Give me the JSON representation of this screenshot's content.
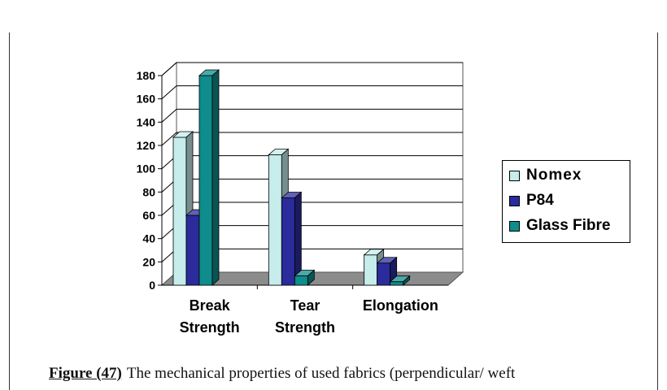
{
  "chart_data": {
    "type": "bar",
    "categories": [
      [
        "Break",
        "Strength"
      ],
      [
        "Tear",
        "Strength"
      ],
      [
        "Elongation"
      ]
    ],
    "series": [
      {
        "name": "Nomex",
        "values": [
          127,
          112,
          26
        ],
        "color": "#c6ecec"
      },
      {
        "name": "P84",
        "values": [
          60,
          75,
          19
        ],
        "color": "#2b2b9c"
      },
      {
        "name": "Glass Fibre",
        "values": [
          180,
          8,
          3
        ],
        "color": "#0f8c8c"
      }
    ],
    "ylim": [
      0,
      180
    ],
    "yticks": [
      0,
      20,
      40,
      60,
      80,
      100,
      120,
      140,
      160,
      180
    ],
    "grid": true,
    "legend_position": "right",
    "floor_color": "#8c8c8c"
  },
  "caption": {
    "label": "Figure (47)",
    "text": "The mechanical properties of used fabrics (perpendicular/ weft"
  }
}
